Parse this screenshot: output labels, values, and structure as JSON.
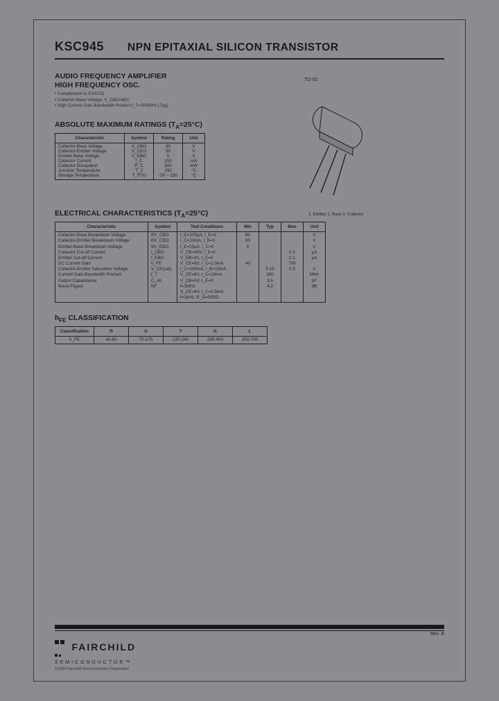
{
  "header": {
    "part_number": "KSC945",
    "title": "NPN EPITAXIAL SILICON TRANSISTOR"
  },
  "package": {
    "label": "TO-92",
    "pinout": "1. Emitter 2. Base 3. Collector",
    "body_color": "#8a8e92",
    "outline_color": "#1f1f1f"
  },
  "description": {
    "line1": "AUDIO FREQUENCY AMPLIFIER",
    "line2": "HIGH FREQUENCY OSC.",
    "bullets": [
      "Complement to KSA733",
      "Collector-Base Voltage: V_CBO=60V",
      "High Current Gain Bandwidth Product f_T=300MHz (Typ)"
    ]
  },
  "abs_max": {
    "heading": "ABSOLUTE MAXIMUM RATINGS (T_A=25°C)",
    "columns": [
      "Characteristic",
      "Symbol",
      "Rating",
      "Unit"
    ],
    "rows": [
      [
        "Collector-Base Voltage",
        "V_CBO",
        "60",
        "V"
      ],
      [
        "Collector-Emitter Voltage",
        "V_CEO",
        "50",
        "V"
      ],
      [
        "Emitter-Base Voltage",
        "V_EBO",
        "5",
        "V"
      ],
      [
        "Collector Current",
        "I_C",
        "150",
        "mA"
      ],
      [
        "Collector Dissipation",
        "P_C",
        "500",
        "mW"
      ],
      [
        "Junction Temperature",
        "T_J",
        "150",
        "°C"
      ],
      [
        "Storage Temperature",
        "T_STG",
        "-55 ~ 150",
        "°C"
      ]
    ]
  },
  "elec": {
    "heading": "ELECTRICAL CHARACTERISTICS (T_A=25°C)",
    "columns": [
      "Characteristic",
      "Symbol",
      "Test Conditions",
      "Min",
      "Typ",
      "Max",
      "Unit"
    ],
    "rows": [
      [
        "Collector-Base Breakdown Voltage",
        "BV_CBO",
        "I_C=100µA, I_E=0",
        "60",
        "",
        "",
        "V"
      ],
      [
        "Collector-Emitter Breakdown Voltage",
        "BV_CEO",
        "I_C=10mA, I_B=0",
        "50",
        "",
        "",
        "V"
      ],
      [
        "Emitter-Base Breakdown Voltage",
        "BV_EBO",
        "I_E=10µA, I_C=0",
        "5",
        "",
        "",
        "V"
      ],
      [
        "Collector Cut-off Current",
        "I_CBO",
        "V_CB=40V, I_E=0",
        "",
        "",
        "0.1",
        "µA"
      ],
      [
        "Emitter Cut-off Current",
        "I_EBO",
        "V_EB=3V, I_C=0",
        "",
        "",
        "0.1",
        "µA"
      ],
      [
        "DC Current Gain",
        "h_FE",
        "V_CE=6V, I_C=1.0mA",
        "40",
        "",
        "700",
        ""
      ],
      [
        "Collector-Emitter Saturation Voltage",
        "V_CE(sat)",
        "I_C=100mA, I_B=10mA",
        "",
        "0.15",
        "0.3",
        "V"
      ],
      [
        "Current Gain-Bandwidth Product",
        "f_T",
        "V_CE=6V, I_C=10mA",
        "",
        "300",
        "",
        "MHz"
      ],
      [
        "Output Capacitance",
        "C_ob",
        "V_CB=5V, I_E=0\nf=1MHz",
        "",
        "3.5",
        "",
        "pF"
      ],
      [
        "Noise Figure",
        "NF",
        "V_CE=6V, I_C=0.5mA\nf=1kHz, R_G=500Ω",
        "",
        "4.0",
        "",
        "dB"
      ]
    ]
  },
  "hfe": {
    "heading": "h_FE CLASSIFICATION",
    "columns": [
      "Classification",
      "R",
      "O",
      "Y",
      "G",
      "L"
    ],
    "row_label": "h_FE",
    "values": [
      "40-80",
      "70-170",
      "120-240",
      "200-400",
      "350-700"
    ]
  },
  "footer": {
    "revision": "Rev. B",
    "logo_main": "FAIRCHILD",
    "logo_sub": "SEMICONDUCTOR™",
    "fine_print": "©1999 Fairchild Semiconductor Corporation",
    "bar_color": "#1a1a1a"
  },
  "style": {
    "page_bg": "#8a8e92",
    "text_color": "#1a1a1a",
    "border_color": "#222222",
    "title_fontsize_pt": 18,
    "heading_fontsize_pt": 10.5,
    "table_fontsize_pt": 6.3
  }
}
